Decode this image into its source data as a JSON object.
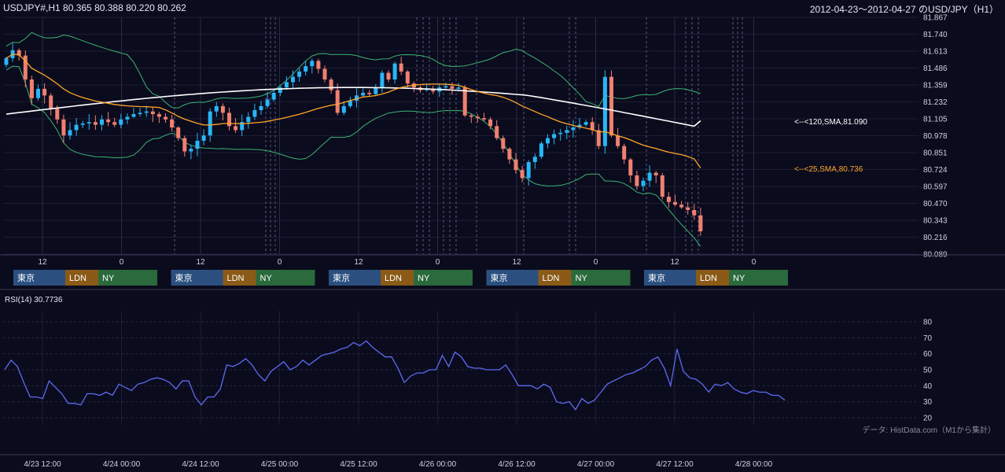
{
  "header": {
    "left": "USDJPY#,H1 80.365 80.388 80.220 80.262",
    "right": "2012-04-23～2012-04-27 のUSD/JPY（H1）"
  },
  "colors": {
    "background": "#0b0b1e",
    "bull": "#29b6f6",
    "bear": "#f08070",
    "sma120": "#ffffff",
    "sma25": "#ffa726",
    "bollinger": "#3cb371",
    "rsi": "#5c6bf0",
    "tokyo": "#2b5080",
    "london": "#8a5a16",
    "newyork": "#2a6a3c"
  },
  "chart_data": [
    {
      "type": "candlestick",
      "title": "USDJPY#,H1",
      "y_ticks": [
        "81.867",
        "81.740",
        "81.613",
        "81.486",
        "81.359",
        "81.232",
        "81.105",
        "80.978",
        "80.851",
        "80.724",
        "80.597",
        "80.470",
        "80.343",
        "80.216",
        "80.089"
      ],
      "ylim": [
        80.089,
        81.867
      ],
      "x_tick_labels": [
        "12",
        "0",
        "12",
        "0",
        "12",
        "0",
        "12",
        "0",
        "12",
        "0"
      ],
      "sma120_label": "<--<120,SMA,81.090",
      "sma25_label": "<--<25,SMA,80.736",
      "sma120_last": 81.09,
      "sma25_last": 80.736,
      "closes": [
        81.56,
        81.62,
        81.58,
        81.4,
        81.26,
        81.33,
        81.28,
        81.18,
        81.1,
        80.98,
        81.02,
        81.06,
        81.07,
        81.08,
        81.06,
        81.1,
        81.08,
        81.06,
        81.1,
        81.12,
        81.14,
        81.15,
        81.16,
        81.14,
        81.12,
        81.1,
        81.04,
        80.96,
        80.86,
        80.88,
        80.94,
        80.98,
        81.16,
        81.2,
        81.15,
        81.05,
        81.02,
        81.08,
        81.12,
        81.17,
        81.2,
        81.25,
        81.3,
        81.34,
        81.38,
        81.42,
        81.46,
        81.5,
        81.54,
        81.48,
        81.4,
        81.32,
        81.15,
        81.2,
        81.24,
        81.28,
        81.3,
        81.29,
        81.34,
        81.45,
        81.4,
        81.52,
        81.46,
        81.37,
        81.34,
        81.32,
        81.33,
        81.31,
        81.34,
        81.35,
        81.33,
        81.34,
        81.13,
        81.12,
        81.11,
        81.1,
        81.05,
        80.96,
        80.88,
        80.8,
        80.72,
        80.66,
        80.78,
        80.82,
        80.92,
        80.96,
        80.99,
        81.0,
        81.02,
        81.04,
        81.06,
        81.08,
        81.02,
        80.9,
        81.42,
        80.98,
        80.9,
        80.8,
        80.68,
        80.6,
        80.64,
        80.7,
        80.68,
        80.52,
        80.48,
        80.46,
        80.44,
        80.42,
        80.38,
        80.26
      ],
      "session_labels": [
        "東京",
        "LDN",
        "NY"
      ],
      "series": [
        {
          "name": "<--<120,SMA,81.090"
        },
        {
          "name": "<--<25,SMA,80.736"
        }
      ]
    },
    {
      "type": "line",
      "title": "RSI(14) 30.7736",
      "y_ticks": [
        "80",
        "70",
        "60",
        "50",
        "40",
        "30",
        "20"
      ],
      "ylim": [
        20,
        80
      ],
      "values": [
        50,
        56,
        52,
        42,
        33,
        33,
        32,
        43,
        39,
        35,
        29,
        29,
        28,
        35,
        35,
        34,
        36,
        34,
        41,
        39,
        37,
        41,
        42,
        44,
        45,
        44,
        42,
        38,
        43,
        43,
        33,
        28,
        33,
        33,
        38,
        53,
        52,
        54,
        57,
        53,
        47,
        43,
        49,
        52,
        55,
        50,
        52,
        56,
        53,
        56,
        59,
        60,
        61,
        63,
        64,
        67,
        65,
        68,
        64,
        61,
        58,
        58,
        51,
        42,
        46,
        48,
        48,
        50,
        50,
        59,
        52,
        61,
        58,
        52,
        51,
        51,
        50,
        50,
        50,
        53,
        47,
        40,
        40,
        40,
        38,
        41,
        39,
        30,
        29,
        30,
        25,
        32,
        29,
        31,
        36,
        41,
        43,
        45,
        47,
        48,
        50,
        52,
        56,
        58,
        51,
        40,
        63,
        49,
        45,
        44,
        41,
        36,
        41,
        40,
        42,
        38,
        36,
        35,
        37,
        36,
        36,
        34,
        34,
        31
      ],
      "x_tick_labels": [
        "4/23 12:00",
        "4/24 00:00",
        "4/24 12:00",
        "4/25 00:00",
        "4/25 12:00",
        "4/26 00:00",
        "4/26 12:00",
        "4/27 00:00",
        "4/27 12:00",
        "4/28 00:00"
      ],
      "source_note": "データ: HistData.com（M1から集計）"
    }
  ]
}
